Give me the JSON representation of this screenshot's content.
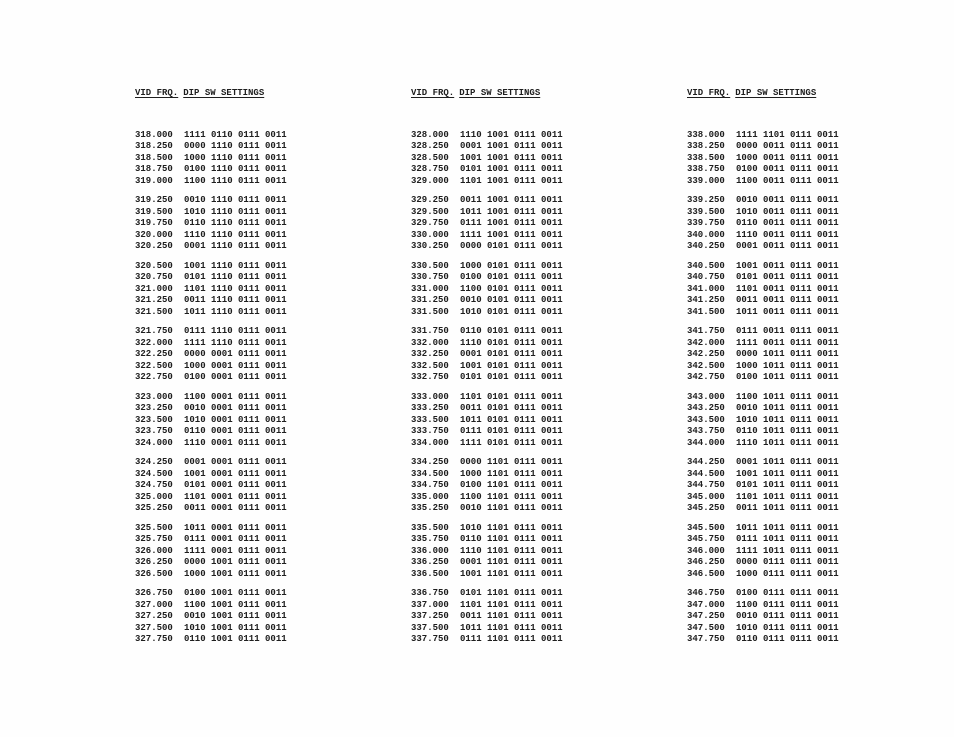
{
  "document": {
    "column_header": {
      "left": "VID FRQ.",
      "right": "DIP SW SETTINGS"
    },
    "text_color": "#1e1e1e",
    "page_background": "#fefefe",
    "columns": [
      {
        "groups": [
          [
            [
              "318.000",
              "1111 0110 0111 0011"
            ],
            [
              "318.250",
              "0000 1110 0111 0011"
            ],
            [
              "318.500",
              "1000 1110 0111 0011"
            ],
            [
              "318.750",
              "0100 1110 0111 0011"
            ],
            [
              "319.000",
              "1100 1110 0111 0011"
            ]
          ],
          [
            [
              "319.250",
              "0010 1110 0111 0011"
            ],
            [
              "319.500",
              "1010 1110 0111 0011"
            ],
            [
              "319.750",
              "0110 1110 0111 0011"
            ],
            [
              "320.000",
              "1110 1110 0111 0011"
            ],
            [
              "320.250",
              "0001 1110 0111 0011"
            ]
          ],
          [
            [
              "320.500",
              "1001 1110 0111 0011"
            ],
            [
              "320.750",
              "0101 1110 0111 0011"
            ],
            [
              "321.000",
              "1101 1110 0111 0011"
            ],
            [
              "321.250",
              "0011 1110 0111 0011"
            ],
            [
              "321.500",
              "1011 1110 0111 0011"
            ]
          ],
          [
            [
              "321.750",
              "0111 1110 0111 0011"
            ],
            [
              "322.000",
              "1111 1110 0111 0011"
            ],
            [
              "322.250",
              "0000 0001 0111 0011"
            ],
            [
              "322.500",
              "1000 0001 0111 0011"
            ],
            [
              "322.750",
              "0100 0001 0111 0011"
            ]
          ],
          [
            [
              "323.000",
              "1100 0001 0111 0011"
            ],
            [
              "323.250",
              "0010 0001 0111 0011"
            ],
            [
              "323.500",
              "1010 0001 0111 0011"
            ],
            [
              "323.750",
              "0110 0001 0111 0011"
            ],
            [
              "324.000",
              "1110 0001 0111 0011"
            ]
          ],
          [
            [
              "324.250",
              "0001 0001 0111 0011"
            ],
            [
              "324.500",
              "1001 0001 0111 0011"
            ],
            [
              "324.750",
              "0101 0001 0111 0011"
            ],
            [
              "325.000",
              "1101 0001 0111 0011"
            ],
            [
              "325.250",
              "0011 0001 0111 0011"
            ]
          ],
          [
            [
              "325.500",
              "1011 0001 0111 0011"
            ],
            [
              "325.750",
              "0111 0001 0111 0011"
            ],
            [
              "326.000",
              "1111 0001 0111 0011"
            ],
            [
              "326.250",
              "0000 1001 0111 0011"
            ],
            [
              "326.500",
              "1000 1001 0111 0011"
            ]
          ],
          [
            [
              "326.750",
              "0100 1001 0111 0011"
            ],
            [
              "327.000",
              "1100 1001 0111 0011"
            ],
            [
              "327.250",
              "0010 1001 0111 0011"
            ],
            [
              "327.500",
              "1010 1001 0111 0011"
            ],
            [
              "327.750",
              "0110 1001 0111 0011"
            ]
          ]
        ]
      },
      {
        "groups": [
          [
            [
              "328.000",
              "1110 1001 0111 0011"
            ],
            [
              "328.250",
              "0001 1001 0111 0011"
            ],
            [
              "328.500",
              "1001 1001 0111 0011"
            ],
            [
              "328.750",
              "0101 1001 0111 0011"
            ],
            [
              "329.000",
              "1101 1001 0111 0011"
            ]
          ],
          [
            [
              "329.250",
              "0011 1001 0111 0011"
            ],
            [
              "329.500",
              "1011 1001 0111 0011"
            ],
            [
              "329.750",
              "0111 1001 0111 0011"
            ],
            [
              "330.000",
              "1111 1001 0111 0011"
            ],
            [
              "330.250",
              "0000 0101 0111 0011"
            ]
          ],
          [
            [
              "330.500",
              "1000 0101 0111 0011"
            ],
            [
              "330.750",
              "0100 0101 0111 0011"
            ],
            [
              "331.000",
              "1100 0101 0111 0011"
            ],
            [
              "331.250",
              "0010 0101 0111 0011"
            ],
            [
              "331.500",
              "1010 0101 0111 0011"
            ]
          ],
          [
            [
              "331.750",
              "0110 0101 0111 0011"
            ],
            [
              "332.000",
              "1110 0101 0111 0011"
            ],
            [
              "332.250",
              "0001 0101 0111 0011"
            ],
            [
              "332.500",
              "1001 0101 0111 0011"
            ],
            [
              "332.750",
              "0101 0101 0111 0011"
            ]
          ],
          [
            [
              "333.000",
              "1101 0101 0111 0011"
            ],
            [
              "333.250",
              "0011 0101 0111 0011"
            ],
            [
              "333.500",
              "1011 0101 0111 0011"
            ],
            [
              "333.750",
              "0111 0101 0111 0011"
            ],
            [
              "334.000",
              "1111 0101 0111 0011"
            ]
          ],
          [
            [
              "334.250",
              "0000 1101 0111 0011"
            ],
            [
              "334.500",
              "1000 1101 0111 0011"
            ],
            [
              "334.750",
              "0100 1101 0111 0011"
            ],
            [
              "335.000",
              "1100 1101 0111 0011"
            ],
            [
              "335.250",
              "0010 1101 0111 0011"
            ]
          ],
          [
            [
              "335.500",
              "1010 1101 0111 0011"
            ],
            [
              "335.750",
              "0110 1101 0111 0011"
            ],
            [
              "336.000",
              "1110 1101 0111 0011"
            ],
            [
              "336.250",
              "0001 1101 0111 0011"
            ],
            [
              "336.500",
              "1001 1101 0111 0011"
            ]
          ],
          [
            [
              "336.750",
              "0101 1101 0111 0011"
            ],
            [
              "337.000",
              "1101 1101 0111 0011"
            ],
            [
              "337.250",
              "0011 1101 0111 0011"
            ],
            [
              "337.500",
              "1011 1101 0111 0011"
            ],
            [
              "337.750",
              "0111 1101 0111 0011"
            ]
          ]
        ]
      },
      {
        "groups": [
          [
            [
              "338.000",
              "1111 1101 0111 0011"
            ],
            [
              "338.250",
              "0000 0011 0111 0011"
            ],
            [
              "338.500",
              "1000 0011 0111 0011"
            ],
            [
              "338.750",
              "0100 0011 0111 0011"
            ],
            [
              "339.000",
              "1100 0011 0111 0011"
            ]
          ],
          [
            [
              "339.250",
              "0010 0011 0111 0011"
            ],
            [
              "339.500",
              "1010 0011 0111 0011"
            ],
            [
              "339.750",
              "0110 0011 0111 0011"
            ],
            [
              "340.000",
              "1110 0011 0111 0011"
            ],
            [
              "340.250",
              "0001 0011 0111 0011"
            ]
          ],
          [
            [
              "340.500",
              "1001 0011 0111 0011"
            ],
            [
              "340.750",
              "0101 0011 0111 0011"
            ],
            [
              "341.000",
              "1101 0011 0111 0011"
            ],
            [
              "341.250",
              "0011 0011 0111 0011"
            ],
            [
              "341.500",
              "1011 0011 0111 0011"
            ]
          ],
          [
            [
              "341.750",
              "0111 0011 0111 0011"
            ],
            [
              "342.000",
              "1111 0011 0111 0011"
            ],
            [
              "342.250",
              "0000 1011 0111 0011"
            ],
            [
              "342.500",
              "1000 1011 0111 0011"
            ],
            [
              "342.750",
              "0100 1011 0111 0011"
            ]
          ],
          [
            [
              "343.000",
              "1100 1011 0111 0011"
            ],
            [
              "343.250",
              "0010 1011 0111 0011"
            ],
            [
              "343.500",
              "1010 1011 0111 0011"
            ],
            [
              "343.750",
              "0110 1011 0111 0011"
            ],
            [
              "344.000",
              "1110 1011 0111 0011"
            ]
          ],
          [
            [
              "344.250",
              "0001 1011 0111 0011"
            ],
            [
              "344.500",
              "1001 1011 0111 0011"
            ],
            [
              "344.750",
              "0101 1011 0111 0011"
            ],
            [
              "345.000",
              "1101 1011 0111 0011"
            ],
            [
              "345.250",
              "0011 1011 0111 0011"
            ]
          ],
          [
            [
              "345.500",
              "1011 1011 0111 0011"
            ],
            [
              "345.750",
              "0111 1011 0111 0011"
            ],
            [
              "346.000",
              "1111 1011 0111 0011"
            ],
            [
              "346.250",
              "0000 0111 0111 0011"
            ],
            [
              "346.500",
              "1000 0111 0111 0011"
            ]
          ],
          [
            [
              "346.750",
              "0100 0111 0111 0011"
            ],
            [
              "347.000",
              "1100 0111 0111 0011"
            ],
            [
              "347.250",
              "0010 0111 0111 0011"
            ],
            [
              "347.500",
              "1010 0111 0111 0011"
            ],
            [
              "347.750",
              "0110 0111 0111 0011"
            ]
          ]
        ]
      }
    ]
  }
}
